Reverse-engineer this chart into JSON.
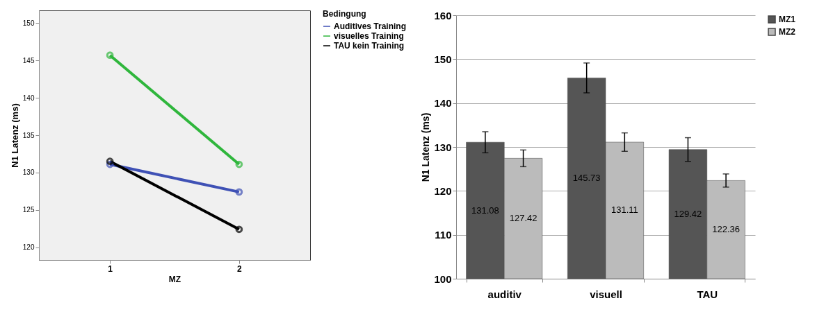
{
  "chart_data": [
    {
      "type": "line",
      "xlabel": "MZ",
      "ylabel": "N1 Latenz (ms)",
      "legend_title": "Bedingung",
      "categories": [
        "1",
        "2"
      ],
      "ylim": [
        118.3,
        151.7
      ],
      "yticks": [
        120,
        125,
        130,
        135,
        140,
        145,
        150
      ],
      "grid": false,
      "legend": "top right",
      "marker": "circle",
      "series": [
        {
          "name": "Auditives Training",
          "color": "#3f51b5",
          "values": [
            131.1,
            127.4
          ]
        },
        {
          "name": "visuelles Training",
          "color": "#2fb63c",
          "values": [
            145.7,
            131.1
          ]
        },
        {
          "name": "TAU kein Training",
          "color": "#000000",
          "values": [
            131.5,
            122.4
          ]
        }
      ]
    },
    {
      "type": "bar",
      "ylabel": "N1 Latenz (ms)",
      "categories": [
        "auditiv",
        "visuell",
        "TAU"
      ],
      "ylim": [
        100,
        160
      ],
      "yticks": [
        100,
        110,
        120,
        130,
        140,
        150,
        160
      ],
      "grid": "y",
      "legend": "right",
      "data_labels": true,
      "series": [
        {
          "name": "MZ1",
          "color": "#555555",
          "values": [
            131.08,
            145.73,
            129.42
          ],
          "errors": [
            2.4,
            3.4,
            2.7
          ]
        },
        {
          "name": "MZ2",
          "color": "#bbbbbb",
          "values": [
            127.42,
            131.11,
            122.36
          ],
          "errors": [
            1.9,
            2.1,
            1.5
          ]
        }
      ]
    }
  ]
}
